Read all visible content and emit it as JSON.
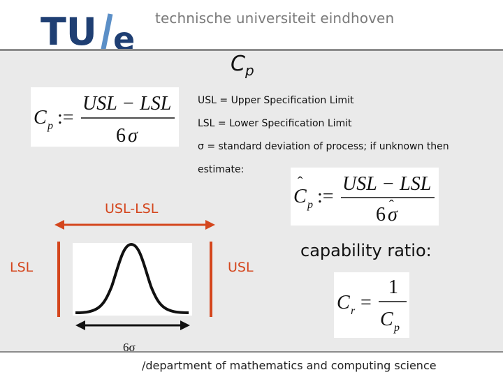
{
  "header": {
    "logo_text": "TU/e",
    "university_name": "technische universiteit eindhoven"
  },
  "slide": {
    "title": "Cp",
    "formulas": {
      "cp": "Cp := (USL − LSL) / 6σ",
      "cp_hat": "Ĉp := (USL − LSL) / 6σ̂",
      "cr": "Cr = 1 / Cp"
    },
    "definitions": [
      "USL = Upper Specification Limit",
      "LSL = Lower Specification Limit",
      "σ = standard deviation of process; if unknown then",
      "estimate:"
    ],
    "diagram": {
      "range_label": "USL-LSL",
      "lsl_label": "LSL",
      "usl_label": "USL",
      "sigma_label": "6σ"
    },
    "capability_label": "capability ratio:"
  },
  "footer": {
    "text": "/department of mathematics and computing science"
  },
  "colors": {
    "accent_orange": "#d4461d",
    "logo_blue": "#1f3f73",
    "logo_slash": "#5b8fc7",
    "body_gray": "#eaeaea"
  }
}
